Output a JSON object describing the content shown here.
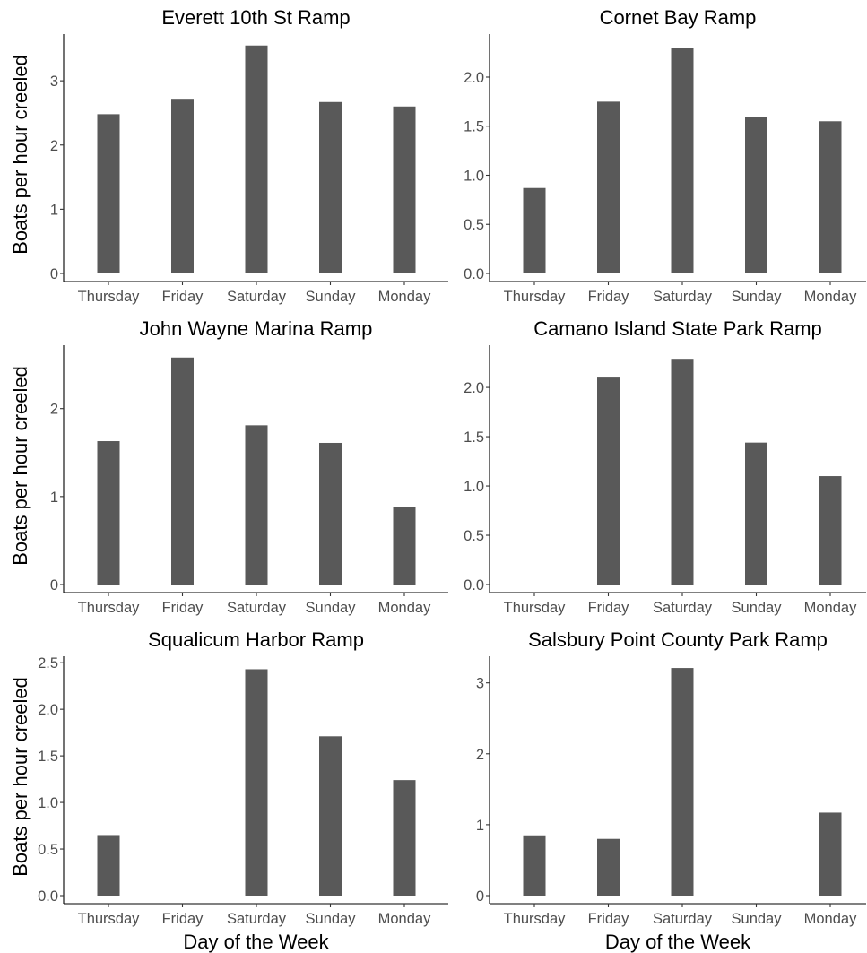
{
  "chart_data": [
    {
      "type": "bar",
      "title": "Everett 10th St Ramp",
      "ylabel": "Boats per hour creeled",
      "xlabel": "",
      "categories": [
        "Thursday",
        "Friday",
        "Saturday",
        "Sunday",
        "Monday"
      ],
      "values": [
        2.48,
        2.72,
        3.55,
        2.67,
        2.6
      ],
      "yticks": [
        0,
        1,
        2,
        3
      ],
      "ytick_labels": [
        "0",
        "1",
        "2",
        "3"
      ],
      "ylim": [
        0,
        3.7
      ]
    },
    {
      "type": "bar",
      "title": "Cornet Bay Ramp",
      "ylabel": "",
      "xlabel": "",
      "categories": [
        "Thursday",
        "Friday",
        "Saturday",
        "Sunday",
        "Monday"
      ],
      "values": [
        0.87,
        1.75,
        2.3,
        1.59,
        1.55
      ],
      "yticks": [
        0,
        0.5,
        1.0,
        1.5,
        2.0
      ],
      "ytick_labels": [
        "0.0",
        "0.5",
        "1.0",
        "1.5",
        "2.0"
      ],
      "ylim": [
        0,
        2.42
      ]
    },
    {
      "type": "bar",
      "title": "John Wayne Marina Ramp",
      "ylabel": "Boats per hour creeled",
      "xlabel": "",
      "categories": [
        "Thursday",
        "Friday",
        "Saturday",
        "Sunday",
        "Monday"
      ],
      "values": [
        1.63,
        2.58,
        1.81,
        1.61,
        0.88
      ],
      "yticks": [
        0,
        1,
        2
      ],
      "ytick_labels": [
        "0",
        "1",
        "2"
      ],
      "ylim": [
        0,
        2.7
      ]
    },
    {
      "type": "bar",
      "title": "Camano Island State Park Ramp",
      "ylabel": "",
      "xlabel": "",
      "categories": [
        "Thursday",
        "Friday",
        "Saturday",
        "Sunday",
        "Monday"
      ],
      "values": [
        0,
        2.1,
        2.29,
        1.44,
        1.1
      ],
      "yticks": [
        0,
        0.5,
        1.0,
        1.5,
        2.0
      ],
      "ytick_labels": [
        "0.0",
        "0.5",
        "1.0",
        "1.5",
        "2.0"
      ],
      "ylim": [
        0,
        2.41
      ]
    },
    {
      "type": "bar",
      "title": "Squalicum Harbor Ramp",
      "ylabel": "Boats per hour creeled",
      "xlabel": "Day of the Week",
      "categories": [
        "Thursday",
        "Friday",
        "Saturday",
        "Sunday",
        "Monday"
      ],
      "values": [
        0.65,
        0,
        2.43,
        1.71,
        1.24
      ],
      "yticks": [
        0,
        0.5,
        1.0,
        1.5,
        2.0,
        2.5
      ],
      "ytick_labels": [
        "0.0",
        "0.5",
        "1.0",
        "1.5",
        "2.0",
        "2.5"
      ],
      "ylim": [
        0,
        2.55
      ]
    },
    {
      "type": "bar",
      "title": "Salsbury Point County Park Ramp",
      "ylabel": "",
      "xlabel": "Day of the Week",
      "categories": [
        "Thursday",
        "Friday",
        "Saturday",
        "Sunday",
        "Monday"
      ],
      "values": [
        0.85,
        0.8,
        3.21,
        0,
        1.17
      ],
      "yticks": [
        0,
        1,
        2,
        3
      ],
      "ytick_labels": [
        "0",
        "1",
        "2",
        "3"
      ],
      "ylim": [
        0,
        3.35
      ]
    }
  ],
  "colors": {
    "bar": "#595959",
    "axis": "#000000",
    "tick_label": "#4d4d4d",
    "background": "#ffffff"
  }
}
